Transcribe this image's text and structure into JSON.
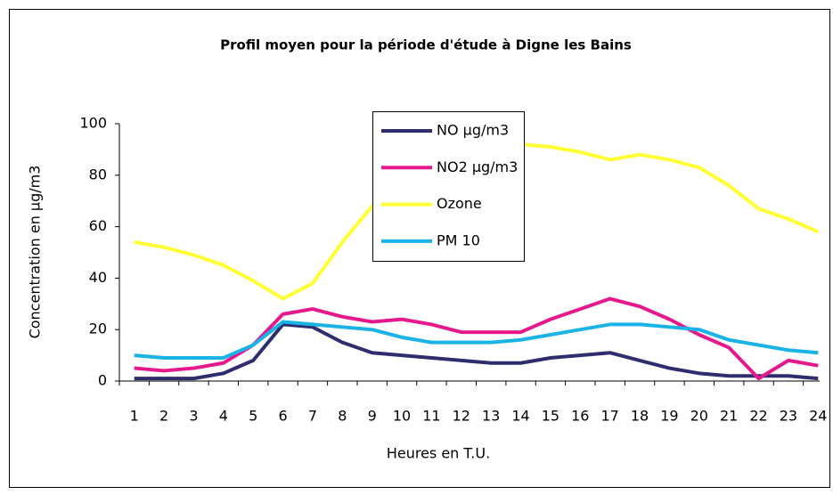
{
  "chart_data": {
    "type": "line",
    "title": "Profil moyen pour la période d'étude à Digne les Bains",
    "x_label": "Heures en T.U.",
    "y_label": "Concentration en µg/m3",
    "categories": [
      1,
      2,
      3,
      4,
      5,
      6,
      7,
      8,
      9,
      10,
      11,
      12,
      13,
      14,
      15,
      16,
      17,
      18,
      19,
      20,
      21,
      22,
      23,
      24
    ],
    "series": [
      {
        "name": "NO µg/m3",
        "color": "#2e2e6e",
        "values": [
          1,
          1,
          1,
          3,
          8,
          22,
          21,
          15,
          11,
          10,
          9,
          8,
          7,
          7,
          9,
          10,
          11,
          8,
          5,
          3,
          2,
          2,
          2,
          1
        ]
      },
      {
        "name": "NO2 µg/m3",
        "color": "#e6198c",
        "values": [
          5,
          4,
          5,
          7,
          14,
          26,
          28,
          25,
          23,
          24,
          22,
          19,
          19,
          19,
          24,
          28,
          32,
          29,
          24,
          18,
          13,
          1,
          8,
          6
        ]
      },
      {
        "name": "Ozone",
        "color": "#ffff33",
        "values": [
          54,
          52,
          49,
          45,
          39,
          32,
          38,
          54,
          68,
          77,
          83,
          87,
          90,
          92,
          91,
          89,
          86,
          88,
          86,
          83,
          76,
          67,
          63,
          58
        ]
      },
      {
        "name": "PM 10",
        "color": "#1ab3e6",
        "values": [
          10,
          9,
          9,
          9,
          14,
          23,
          22,
          21,
          20,
          17,
          15,
          15,
          15,
          16,
          18,
          20,
          22,
          22,
          21,
          20,
          16,
          14,
          12,
          11
        ]
      }
    ],
    "ylim": [
      0,
      100
    ],
    "yticks": [
      0,
      20,
      40,
      60,
      80,
      100
    ]
  }
}
